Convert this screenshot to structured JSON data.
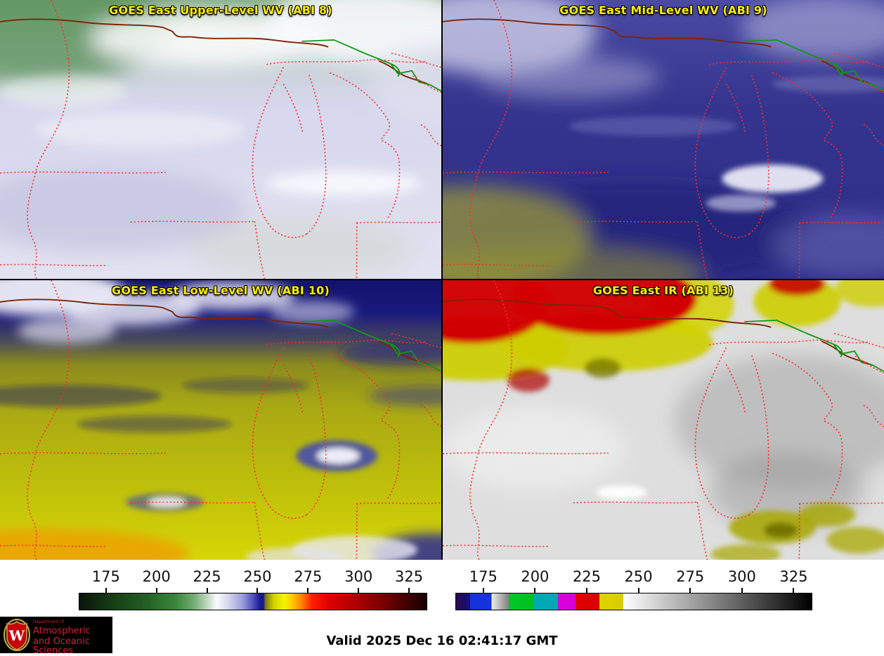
{
  "panels": [
    {
      "id": "abi8",
      "title": "GOES East Upper-Level WV (ABI 8)"
    },
    {
      "id": "abi9",
      "title": "GOES East Mid-Level WV (ABI 9)"
    },
    {
      "id": "abi10",
      "title": "GOES East Low-Level WV (ABI 10)"
    },
    {
      "id": "abi13",
      "title": "GOES East IR (ABI 13)"
    }
  ],
  "colorbars": [
    {
      "id": "wv-colorbar",
      "ticks": [
        175,
        200,
        225,
        250,
        275,
        300,
        325
      ],
      "range": [
        161.5,
        334
      ],
      "stops": [
        [
          0,
          "#0b130b"
        ],
        [
          10,
          "#164016"
        ],
        [
          20,
          "#246224"
        ],
        [
          28,
          "#3c883c"
        ],
        [
          33,
          "#74ac74"
        ],
        [
          37,
          "#c2dac2"
        ],
        [
          39.5,
          "#fbfbfd"
        ],
        [
          43,
          "#d4d4ee"
        ],
        [
          47,
          "#9c9cdc"
        ],
        [
          50,
          "#5050bc"
        ],
        [
          52,
          "#1c1c98"
        ],
        [
          53,
          "#16168a"
        ],
        [
          53.6,
          "#787810"
        ],
        [
          56,
          "#d2d200"
        ],
        [
          59,
          "#f5f500"
        ],
        [
          61,
          "#ffcf00"
        ],
        [
          64,
          "#ff8400"
        ],
        [
          67,
          "#ff1e00"
        ],
        [
          72,
          "#dc0000"
        ],
        [
          80,
          "#ac0000"
        ],
        [
          88,
          "#740000"
        ],
        [
          95,
          "#3c0000"
        ],
        [
          100,
          "#170000"
        ]
      ]
    },
    {
      "id": "ir-colorbar",
      "ticks": [
        175,
        200,
        225,
        250,
        275,
        300,
        325
      ],
      "range": [
        161.5,
        334
      ],
      "stops": [
        [
          0,
          "#2a0a54"
        ],
        [
          2,
          "#1e0c64"
        ],
        [
          4,
          "#171080"
        ],
        [
          4,
          "#1632dc"
        ],
        [
          10,
          "#1632dc"
        ],
        [
          10,
          "#ececec"
        ],
        [
          14.8,
          "#828282"
        ],
        [
          14.8,
          "#00c828"
        ],
        [
          21.7,
          "#00c020"
        ],
        [
          21.7,
          "#00a8b4"
        ],
        [
          28.7,
          "#00a8b4"
        ],
        [
          28.7,
          "#d800d8"
        ],
        [
          33.6,
          "#d800d8"
        ],
        [
          33.6,
          "#dc0000"
        ],
        [
          40.3,
          "#dc0000"
        ],
        [
          40.3,
          "#ded400"
        ],
        [
          47,
          "#d8ce00"
        ],
        [
          47,
          "#ffffff"
        ],
        [
          100,
          "#000000"
        ]
      ]
    }
  ],
  "footer": {
    "valid_label": "Valid 2025 Dec 16 02:41:17 GMT",
    "logo": {
      "line1": "Department of",
      "line2": "Atmospheric",
      "line3": "and Oceanic Sciences",
      "crest_letter": "W",
      "brand_red": "#c5050c"
    }
  },
  "map_overlay": {
    "border_color": "#ff2a2a",
    "shoreline_color": "#7c2408",
    "river_color": "#0c9a14"
  }
}
